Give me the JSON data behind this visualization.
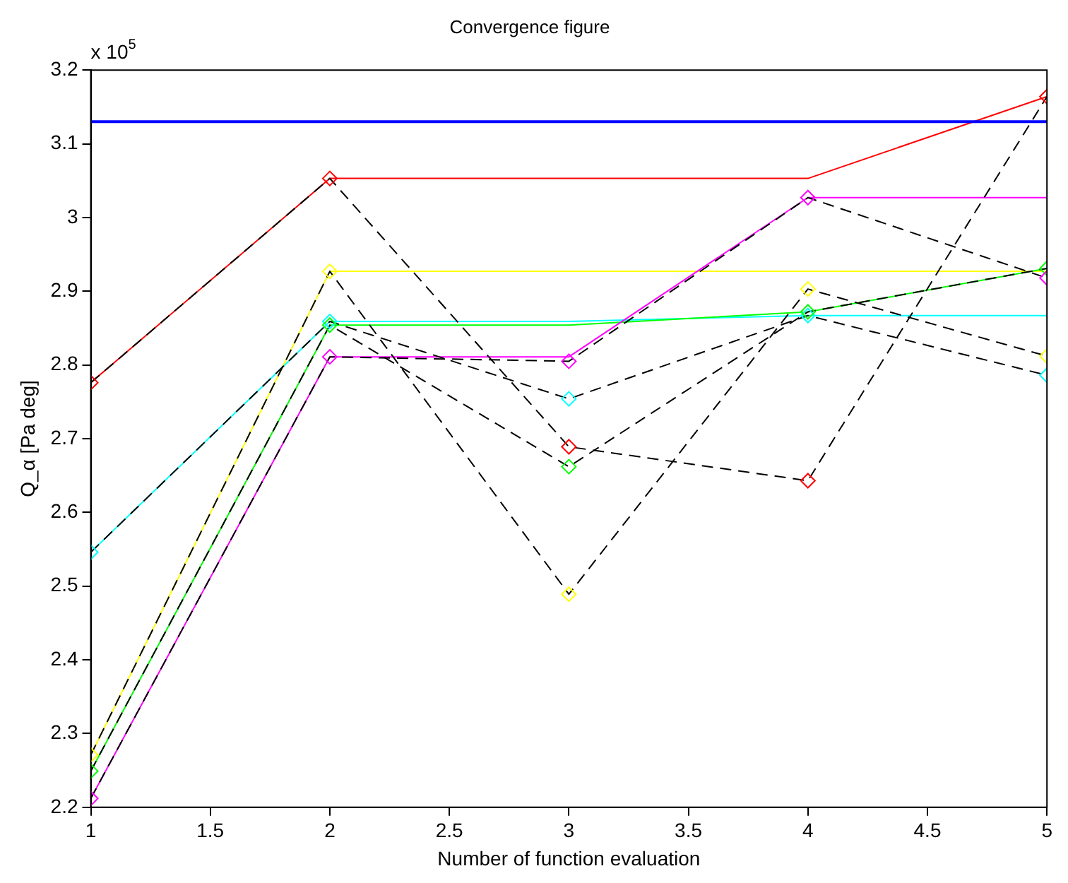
{
  "chart_data": {
    "type": "line",
    "title": "Convergence figure",
    "xlabel": "Number of function evaluation",
    "ylabel": "Q_α [Pa deg]",
    "annotations": [
      "x 10$^{5}$"
    ],
    "x": [
      1,
      2,
      3,
      4,
      5
    ],
    "series": [
      {
        "color": "#ff0000",
        "line_style": "solid",
        "marker": "none",
        "values": [
          2.776,
          3.053,
          3.053,
          3.053,
          3.164
        ]
      },
      {
        "color": "#ffff00",
        "line_style": "solid",
        "marker": "none",
        "values": [
          2.271,
          2.927,
          2.927,
          2.927,
          2.927
        ]
      },
      {
        "color": "#00ffff",
        "line_style": "solid",
        "marker": "none",
        "values": [
          2.546,
          2.859,
          2.859,
          2.867,
          2.867
        ]
      },
      {
        "color": "#00ff00",
        "line_style": "solid",
        "marker": "none",
        "values": [
          2.249,
          2.854,
          2.854,
          2.872,
          2.931
        ]
      },
      {
        "color": "#ff00ff",
        "line_style": "solid",
        "marker": "none",
        "values": [
          2.212,
          2.811,
          2.811,
          3.027,
          3.027
        ]
      },
      {
        "color": "#000000",
        "line_style": "dashed",
        "marker": "none",
        "values": [
          2.776,
          3.053,
          2.689,
          2.643,
          3.164
        ]
      },
      {
        "color": "#000000",
        "line_style": "dashed",
        "marker": "none",
        "values": [
          2.271,
          2.927,
          2.489,
          2.903,
          2.812
        ]
      },
      {
        "color": "#000000",
        "line_style": "dashed",
        "marker": "none",
        "values": [
          2.546,
          2.859,
          2.754,
          2.867,
          2.786
        ]
      },
      {
        "color": "#000000",
        "line_style": "dashed",
        "marker": "none",
        "values": [
          2.249,
          2.854,
          2.662,
          2.872,
          2.931
        ]
      },
      {
        "color": "#000000",
        "line_style": "dashed",
        "marker": "none",
        "values": [
          2.212,
          2.811,
          2.805,
          3.027,
          2.918
        ]
      },
      {
        "type": "scatter",
        "color": "#ff0000",
        "marker": "diamond",
        "values": [
          2.776,
          3.053,
          2.689,
          2.643,
          3.164
        ]
      },
      {
        "type": "scatter",
        "color": "#ffff00",
        "marker": "diamond",
        "values": [
          2.271,
          2.927,
          2.489,
          2.903,
          2.812
        ]
      },
      {
        "type": "scatter",
        "color": "#00ffff",
        "marker": "diamond",
        "values": [
          2.546,
          2.859,
          2.754,
          2.867,
          2.786
        ]
      },
      {
        "type": "scatter",
        "color": "#00ff00",
        "marker": "diamond",
        "values": [
          2.249,
          2.854,
          2.662,
          2.872,
          2.931
        ]
      },
      {
        "type": "scatter",
        "color": "#ff00ff",
        "marker": "diamond",
        "values": [
          2.212,
          2.811,
          2.805,
          3.027,
          2.918
        ]
      }
    ],
    "ref_lines": [
      {
        "axis": "y",
        "value": 3.13,
        "color": "#0000ff",
        "line_style": "solid"
      }
    ],
    "xlim": [
      1,
      5
    ],
    "xticks": [
      1,
      1.5,
      2,
      2.5,
      3,
      3.5,
      4,
      4.5,
      5
    ],
    "ylim": [
      2.2,
      3.2
    ],
    "yticks": [
      2.2,
      2.3,
      2.4,
      2.5,
      2.6,
      2.7,
      2.8,
      2.9,
      3,
      3.1,
      3.2
    ],
    "grid": false,
    "legend": false
  }
}
